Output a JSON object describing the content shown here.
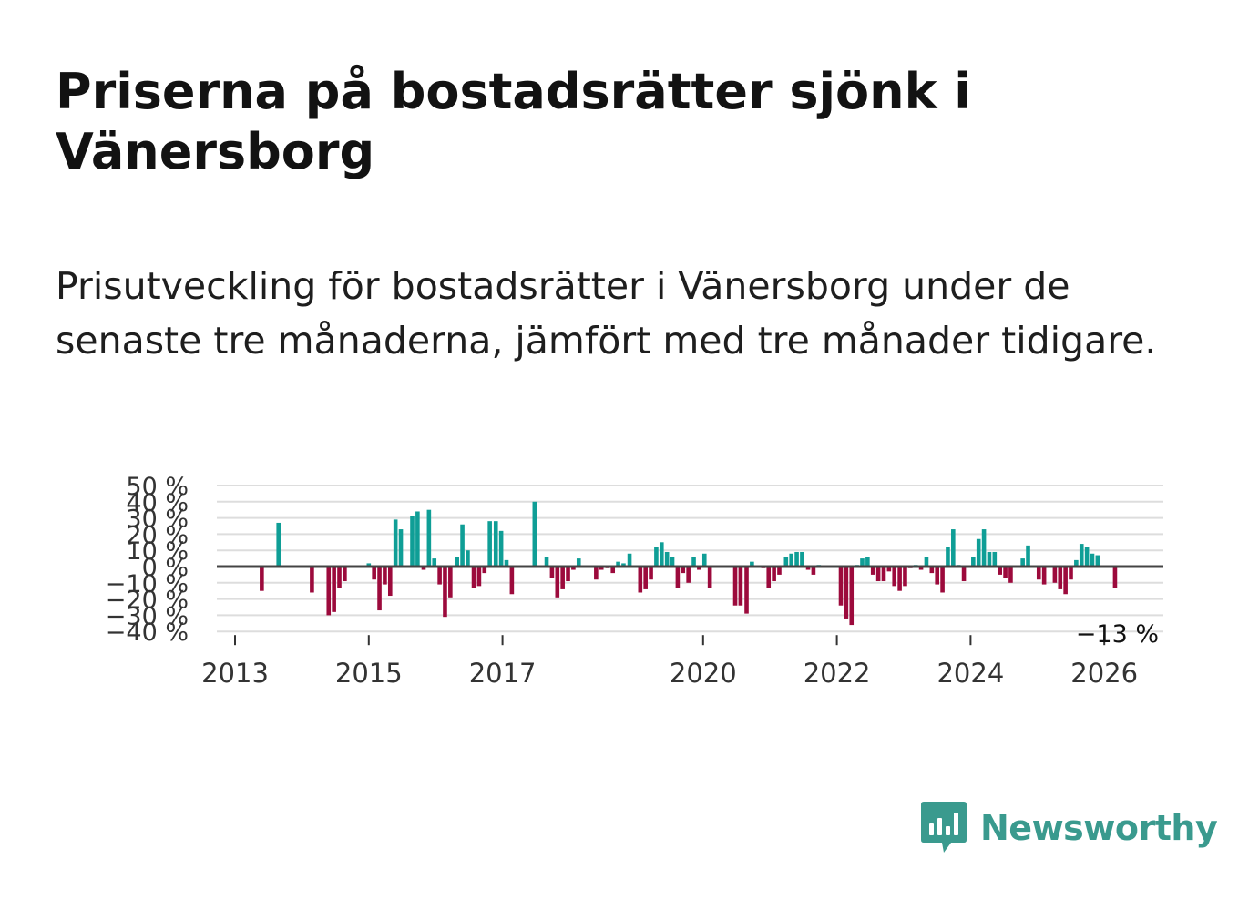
{
  "title": "Priserna på bostadsrätter sjönk i Vänersborg",
  "subtitle": "Prisutveckling för bostadsrätter i Vänersborg under de senaste tre månaderna, jämfört med tre månader tidigare.",
  "brand": {
    "name": "Newsworthy",
    "color": "#3a9a8e"
  },
  "colors": {
    "positive": "#0f9e96",
    "negative": "#9c0a3c",
    "grid": "#dddddd",
    "zero_line": "#444444"
  },
  "chart_data": {
    "type": "bar",
    "title": "Priserna på bostadsrätter sjönk i Vänersborg",
    "xlabel": "",
    "ylabel": "",
    "ylim": [
      -40,
      50
    ],
    "y_ticks": [
      50,
      40,
      30,
      20,
      10,
      0,
      -10,
      -20,
      -30,
      -40
    ],
    "y_tick_labels": [
      "50 %",
      "40 %",
      "30 %",
      "20 %",
      "10 %",
      "0 %",
      "−10 %",
      "−20 %",
      "−30 %",
      "−40 %"
    ],
    "x_ticks": [
      2013,
      2015,
      2017,
      2020,
      2022,
      2024,
      2026
    ],
    "x_tick_labels": [
      "2013",
      "2015",
      "2017",
      "2020",
      "2022",
      "2024",
      "2026"
    ],
    "last_value_label": "−13 %",
    "series": [
      {
        "name": "Prisutveckling",
        "points": [
          [
            2013.4,
            -15
          ],
          [
            2013.65,
            27
          ],
          [
            2014.15,
            -16
          ],
          [
            2014.4,
            -30
          ],
          [
            2014.48,
            -28
          ],
          [
            2014.56,
            -13
          ],
          [
            2014.64,
            -9
          ],
          [
            2015.0,
            2
          ],
          [
            2015.08,
            -8
          ],
          [
            2015.16,
            -27
          ],
          [
            2015.24,
            -11
          ],
          [
            2015.32,
            -18
          ],
          [
            2015.4,
            29
          ],
          [
            2015.48,
            23
          ],
          [
            2015.65,
            31
          ],
          [
            2015.73,
            34
          ],
          [
            2015.82,
            -2
          ],
          [
            2015.9,
            35
          ],
          [
            2015.98,
            5
          ],
          [
            2016.06,
            -11
          ],
          [
            2016.14,
            -31
          ],
          [
            2016.22,
            -19
          ],
          [
            2016.32,
            6
          ],
          [
            2016.4,
            26
          ],
          [
            2016.48,
            10
          ],
          [
            2016.57,
            -13
          ],
          [
            2016.65,
            -12
          ],
          [
            2016.73,
            -4
          ],
          [
            2016.81,
            28
          ],
          [
            2016.9,
            28
          ],
          [
            2016.98,
            22
          ],
          [
            2017.06,
            4
          ],
          [
            2017.14,
            -17
          ],
          [
            2017.48,
            40
          ],
          [
            2017.66,
            6
          ],
          [
            2017.74,
            -7
          ],
          [
            2017.82,
            -19
          ],
          [
            2017.9,
            -14
          ],
          [
            2017.98,
            -9
          ],
          [
            2018.06,
            -2
          ],
          [
            2018.14,
            5
          ],
          [
            2018.4,
            -8
          ],
          [
            2018.48,
            -2
          ],
          [
            2018.57,
            -1
          ],
          [
            2018.65,
            -4
          ],
          [
            2018.73,
            3
          ],
          [
            2018.81,
            2
          ],
          [
            2018.9,
            8
          ],
          [
            2019.06,
            -16
          ],
          [
            2019.14,
            -14
          ],
          [
            2019.22,
            -8
          ],
          [
            2019.3,
            12
          ],
          [
            2019.38,
            15
          ],
          [
            2019.46,
            9
          ],
          [
            2019.54,
            6
          ],
          [
            2019.62,
            -13
          ],
          [
            2019.7,
            -4
          ],
          [
            2019.78,
            -10
          ],
          [
            2019.86,
            6
          ],
          [
            2019.94,
            -2
          ],
          [
            2020.02,
            8
          ],
          [
            2020.1,
            -13
          ],
          [
            2020.48,
            -24
          ],
          [
            2020.56,
            -24
          ],
          [
            2020.65,
            -29
          ],
          [
            2020.73,
            3
          ],
          [
            2020.9,
            -1
          ],
          [
            2020.98,
            -13
          ],
          [
            2021.06,
            -9
          ],
          [
            2021.14,
            -5
          ],
          [
            2021.24,
            6
          ],
          [
            2021.32,
            8
          ],
          [
            2021.4,
            9
          ],
          [
            2021.48,
            9
          ],
          [
            2021.57,
            -2
          ],
          [
            2021.65,
            -5
          ],
          [
            2021.73,
            1
          ],
          [
            2022.06,
            -24
          ],
          [
            2022.14,
            -32
          ],
          [
            2022.22,
            -36
          ],
          [
            2022.3,
            1
          ],
          [
            2022.38,
            5
          ],
          [
            2022.46,
            6
          ],
          [
            2022.54,
            -5
          ],
          [
            2022.62,
            -9
          ],
          [
            2022.7,
            -9
          ],
          [
            2022.78,
            -3
          ],
          [
            2022.86,
            -12
          ],
          [
            2022.94,
            -15
          ],
          [
            2023.02,
            -12
          ],
          [
            2023.1,
            -1
          ],
          [
            2023.18,
            1
          ],
          [
            2023.26,
            -2
          ],
          [
            2023.34,
            6
          ],
          [
            2023.42,
            -4
          ],
          [
            2023.5,
            -11
          ],
          [
            2023.58,
            -16
          ],
          [
            2023.66,
            12
          ],
          [
            2023.74,
            23
          ],
          [
            2023.82,
            1
          ],
          [
            2023.9,
            -9
          ],
          [
            2024.04,
            6
          ],
          [
            2024.12,
            17
          ],
          [
            2024.2,
            23
          ],
          [
            2024.28,
            9
          ],
          [
            2024.36,
            9
          ],
          [
            2024.44,
            -5
          ],
          [
            2024.52,
            -7
          ],
          [
            2024.6,
            -10
          ],
          [
            2024.78,
            5
          ],
          [
            2024.86,
            13
          ],
          [
            2025.02,
            -8
          ],
          [
            2025.1,
            -11
          ],
          [
            2025.26,
            -10
          ],
          [
            2025.34,
            -14
          ],
          [
            2025.42,
            -17
          ],
          [
            2025.5,
            -8
          ],
          [
            2025.58,
            4
          ],
          [
            2025.66,
            14
          ],
          [
            2025.74,
            12
          ],
          [
            2025.82,
            8
          ],
          [
            2025.9,
            7
          ],
          [
            2026.16,
            -13
          ]
        ]
      }
    ]
  }
}
